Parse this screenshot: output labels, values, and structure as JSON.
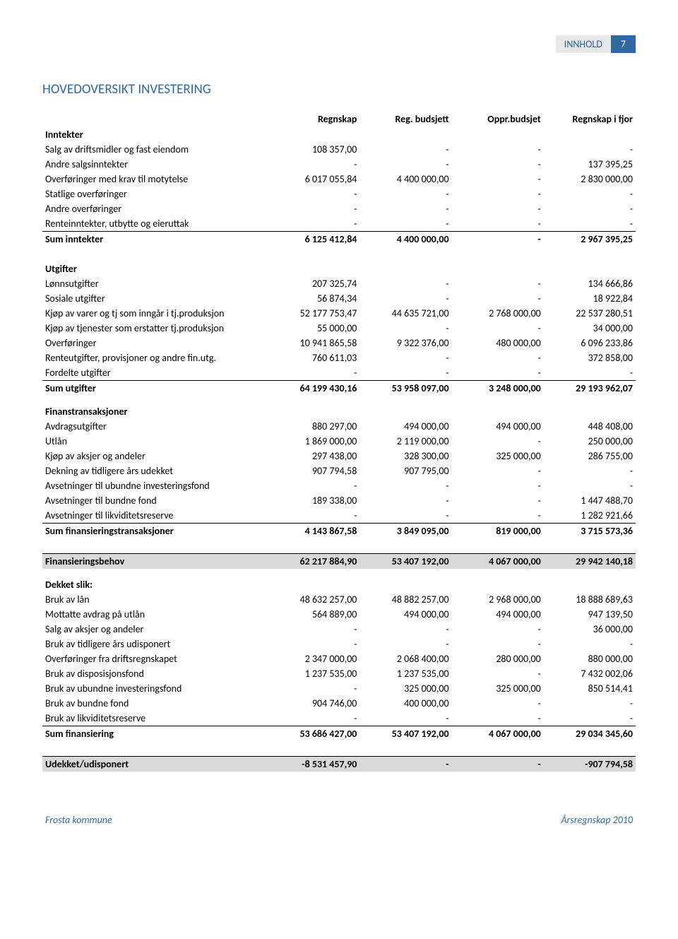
{
  "header": {
    "label": "INNHOLD",
    "page": "7"
  },
  "title": "HOVEDOVERSIKT INVESTERING",
  "columns": [
    "Regnskap",
    "Reg. budsjett",
    "Oppr.budsjet",
    "Regnskap i fjor"
  ],
  "sections": [
    {
      "name": "Inntekter",
      "rows": [
        {
          "label": "Salg av driftsmidler og fast eiendom",
          "v": [
            "108 357,00",
            "-",
            "-",
            "-"
          ]
        },
        {
          "label": "Andre salgsinntekter",
          "v": [
            "-",
            "-",
            "-",
            "137 395,25"
          ]
        },
        {
          "label": "Overføringer med krav til motytelse",
          "v": [
            "6 017 055,84",
            "4 400 000,00",
            "-",
            "2 830 000,00"
          ]
        },
        {
          "label": "Statlige overføringer",
          "v": [
            "-",
            "-",
            "-",
            "-"
          ]
        },
        {
          "label": "Andre overføringer",
          "v": [
            "-",
            "-",
            "-",
            "-"
          ]
        },
        {
          "label": "Renteinntekter, utbytte og eieruttak",
          "v": [
            "-",
            "-",
            "-",
            "-"
          ]
        }
      ],
      "sum": {
        "label": "Sum inntekter",
        "v": [
          "6 125 412,84",
          "4 400 000,00",
          "-",
          "2 967 395,25"
        ]
      }
    },
    {
      "name": "Utgifter",
      "rows": [
        {
          "label": "Lønnsutgifter",
          "v": [
            "207 325,74",
            "-",
            "-",
            "134 666,86"
          ]
        },
        {
          "label": "Sosiale utgifter",
          "v": [
            "56 874,34",
            "-",
            "-",
            "18 922,84"
          ]
        },
        {
          "label": "Kjøp av varer og tj som inngår i tj.produksjon",
          "v": [
            "52 177 753,47",
            "44 635 721,00",
            "2 768 000,00",
            "22 537 280,51"
          ]
        },
        {
          "label": "Kjøp av tjenester som erstatter tj.produksjon",
          "v": [
            "55 000,00",
            "-",
            "-",
            "34 000,00"
          ]
        },
        {
          "label": "Overføringer",
          "v": [
            "10 941 865,58",
            "9 322 376,00",
            "480 000,00",
            "6 096 233,86"
          ]
        },
        {
          "label": "Renteutgifter, provisjoner og andre fin.utg.",
          "v": [
            "760 611,03",
            "-",
            "-",
            "372 858,00"
          ]
        },
        {
          "label": "Fordelte utgifter",
          "v": [
            "-",
            "-",
            "-",
            "-"
          ]
        }
      ],
      "sum": {
        "label": "Sum utgifter",
        "v": [
          "64 199 430,16",
          "53 958 097,00",
          "3 248 000,00",
          "29 193 962,07"
        ]
      }
    },
    {
      "name": "Finanstransaksjoner",
      "rows": [
        {
          "label": "Avdragsutgifter",
          "v": [
            "880 297,00",
            "494 000,00",
            "494 000,00",
            "448 408,00"
          ]
        },
        {
          "label": "Utlån",
          "v": [
            "1 869 000,00",
            "2 119 000,00",
            "-",
            "250 000,00"
          ]
        },
        {
          "label": "Kjøp av aksjer og andeler",
          "v": [
            "297 438,00",
            "328 300,00",
            "325 000,00",
            "286 755,00"
          ]
        },
        {
          "label": "Dekning av tidligere års udekket",
          "v": [
            "907 794,58",
            "907 795,00",
            "-",
            "-"
          ]
        },
        {
          "label": "Avsetninger til ubundne investeringsfond",
          "v": [
            "-",
            "-",
            "-",
            "-"
          ]
        },
        {
          "label": "Avsetninger til bundne fond",
          "v": [
            "189 338,00",
            "-",
            "-",
            "1 447 488,70"
          ]
        },
        {
          "label": "Avsetninger til likviditetsreserve",
          "v": [
            "-",
            "-",
            "-",
            "1 282 921,66"
          ]
        }
      ],
      "sum": {
        "label": "Sum finansieringstransaksjoner",
        "v": [
          "4 143 867,58",
          "3 849 095,00",
          "819 000,00",
          "3 715 573,36"
        ]
      }
    }
  ],
  "finansieringsbehov": {
    "label": "Finansieringsbehov",
    "v": [
      "62 217 884,90",
      "53 407 192,00",
      "4 067 000,00",
      "29 942 140,18"
    ]
  },
  "dekket": {
    "name": "Dekket slik:",
    "rows": [
      {
        "label": "Bruk av lån",
        "v": [
          "48 632 257,00",
          "48 882 257,00",
          "2 968 000,00",
          "18 888 689,63"
        ]
      },
      {
        "label": "Mottatte avdrag på utlån",
        "v": [
          "564 889,00",
          "494 000,00",
          "494 000,00",
          "947 139,50"
        ]
      },
      {
        "label": "Salg av aksjer og andeler",
        "v": [
          "-",
          "-",
          "-",
          "36 000,00"
        ]
      },
      {
        "label": "Bruk av tidligere års udisponert",
        "v": [
          "-",
          "-",
          "-",
          "-"
        ]
      },
      {
        "label": "Overføringer fra driftsregnskapet",
        "v": [
          "2 347 000,00",
          "2 068 400,00",
          "280 000,00",
          "880 000,00"
        ]
      },
      {
        "label": "Bruk av disposisjonsfond",
        "v": [
          "1 237 535,00",
          "1 237 535,00",
          "-",
          "7 432 002,06"
        ]
      },
      {
        "label": "Bruk av ubundne investeringsfond",
        "v": [
          "-",
          "325 000,00",
          "325 000,00",
          "850 514,41"
        ]
      },
      {
        "label": "Bruk av bundne fond",
        "v": [
          "904 746,00",
          "400 000,00",
          "-",
          "-"
        ]
      },
      {
        "label": "Bruk av likviditetsreserve",
        "v": [
          "-",
          "-",
          "-",
          "-"
        ]
      }
    ],
    "sum": {
      "label": "Sum finansiering",
      "v": [
        "53 686 427,00",
        "53 407 192,00",
        "4 067 000,00",
        "29 034 345,60"
      ]
    }
  },
  "udekket": {
    "label": "Udekket/udisponert",
    "v": [
      "-8 531 457,90",
      "-",
      "-",
      "-907 794,58"
    ]
  },
  "footer": {
    "left": "Frosta kommune",
    "right": "Årsregnskap 2010"
  }
}
